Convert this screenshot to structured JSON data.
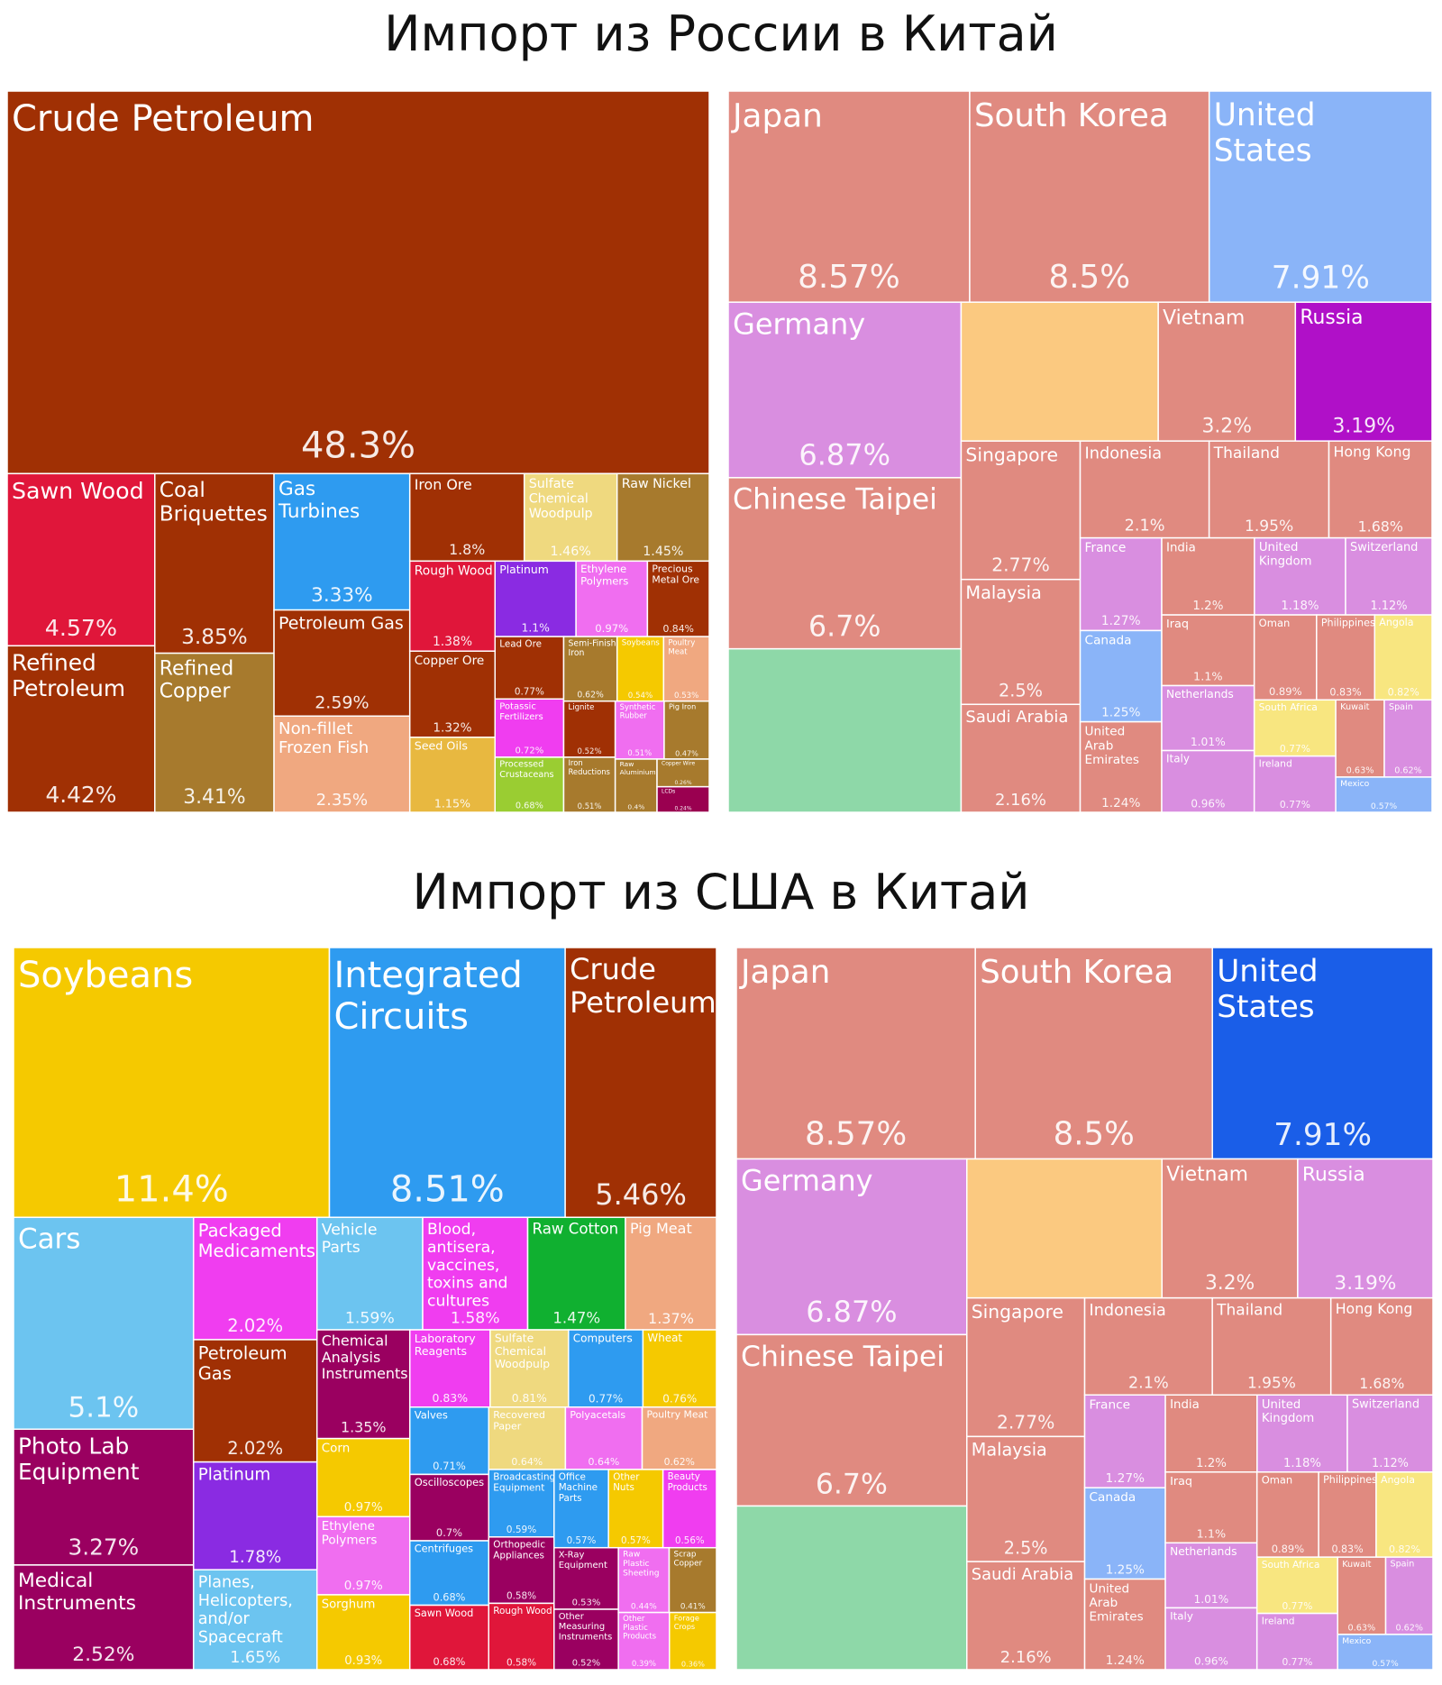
{
  "chart_data": [
    {
      "type": "treemap",
      "title": "Импорт из России в Китай",
      "categories": [
        "Crude Petroleum",
        "Sawn Wood",
        "Refined Petroleum",
        "Coal Briquettes",
        "Refined Copper",
        "Gas Turbines",
        "Petroleum Gas",
        "Non-fillet Frozen Fish",
        "Iron Ore",
        "Sulfate Chemical Woodpulp",
        "Raw Nickel",
        "Rough Wood",
        "Copper Ore",
        "Seed Oils",
        "Platinum",
        "Ethylene Polymers",
        "Precious Metal Ore",
        "Lead Ore",
        "Potassic Fertilizers",
        "Processed Crustaceans",
        "Semi-Finished Iron",
        "Soybeans",
        "Poultry Meat",
        "Lignite",
        "Iron Reductions",
        "Synthetic Rubber",
        "Pig Iron",
        "Raw Aluminium",
        "Copper Wire",
        "LCDs"
      ],
      "values": [
        48.3,
        4.57,
        4.42,
        3.85,
        3.41,
        3.33,
        2.59,
        2.35,
        1.8,
        1.46,
        1.45,
        1.38,
        1.32,
        1.15,
        1.1,
        0.97,
        0.84,
        0.77,
        0.72,
        0.68,
        0.62,
        0.54,
        0.53,
        0.52,
        0.51,
        0.51,
        0.47,
        0.4,
        0.26,
        0.24
      ],
      "value_labels": [
        "48.3%",
        "4.57%",
        "4.42%",
        "3.85%",
        "3.41%",
        "3.33%",
        "2.59%",
        "2.35%",
        "1.8%",
        "1.46%",
        "1.45%",
        "1.38%",
        "1.32%",
        "1.15%",
        "1.1%",
        "0.97%",
        "0.84%",
        "0.77%",
        "0.72%",
        "0.68%",
        "0.62%",
        "0.54%",
        "0.53%",
        "0.52%",
        "0.51%",
        "0.51%",
        "0.47%",
        "0.4%",
        "0.26%",
        "0.24%"
      ],
      "colors": [
        "#a03004",
        "#e0163a",
        "#a03004",
        "#a03004",
        "#a77a2d",
        "#2e9bf0",
        "#a03004",
        "#f0a880",
        "#a03004",
        "#efd97f",
        "#a77a2d",
        "#e0163a",
        "#a03004",
        "#e8b840",
        "#8a2be2",
        "#f06ef0",
        "#a03004",
        "#a03004",
        "#f03df0",
        "#9acd32",
        "#a77a2d",
        "#f5c900",
        "#f0a880",
        "#a03004",
        "#a77a2d",
        "#f06ef0",
        "#a77a2d",
        "#a77a2d",
        "#a77a2d",
        "#9a0050"
      ]
    },
    {
      "type": "treemap",
      "categories": [
        "Japan",
        "South Korea",
        "United States",
        "Germany",
        "Chinese Taipei",
        null,
        null,
        "Vietnam",
        "Russia",
        "Singapore",
        "Malaysia",
        "Saudi Arabia",
        "Indonesia",
        "Thailand",
        "Hong Kong",
        "France",
        "Canada",
        "United Arab Emirates",
        "India",
        "United Kingdom",
        "Switzerland",
        "Iraq",
        "Netherlands",
        "Italy",
        "Oman",
        "Philippines",
        "Angola",
        "South Africa",
        "Ireland",
        "Kuwait",
        "Spain",
        "Mexico"
      ],
      "values": [
        8.57,
        8.5,
        7.91,
        6.87,
        6.7,
        6.4,
        4.6,
        3.2,
        3.19,
        2.77,
        2.5,
        2.16,
        2.1,
        1.95,
        1.68,
        1.27,
        1.25,
        1.24,
        1.2,
        1.18,
        1.12,
        1.1,
        1.01,
        0.96,
        0.89,
        0.83,
        0.82,
        0.77,
        0.77,
        0.63,
        0.62,
        0.57
      ],
      "value_labels": [
        "8.57%",
        "8.5%",
        "7.91%",
        "6.87%",
        "6.7%",
        null,
        null,
        "3.2%",
        "3.19%",
        "2.77%",
        "2.5%",
        "2.16%",
        "2.1%",
        "1.95%",
        "1.68%",
        "1.27%",
        "1.25%",
        "1.24%",
        "1.2%",
        "1.18%",
        "1.12%",
        "1.1%",
        "1.01%",
        "0.96%",
        "0.89%",
        "0.83%",
        "0.82%",
        "0.77%",
        "0.77%",
        "0.63%",
        "0.62%",
        "0.57%"
      ],
      "colors": [
        "#e08a80",
        "#e08a80",
        "#8ab4f8",
        "#d98ee0",
        "#e08a80",
        "#8ed8a8",
        "#fbc980",
        "#e08a80",
        "#b010c8",
        "#e08a80",
        "#e08a80",
        "#e08a80",
        "#e08a80",
        "#e08a80",
        "#e08a80",
        "#d98ee0",
        "#8ab4f8",
        "#e08a80",
        "#e08a80",
        "#d98ee0",
        "#d98ee0",
        "#e08a80",
        "#d98ee0",
        "#d98ee0",
        "#e08a80",
        "#e08a80",
        "#f8e680",
        "#f8e680",
        "#d98ee0",
        "#e08a80",
        "#d98ee0",
        "#8ab4f8"
      ]
    },
    {
      "type": "treemap",
      "title": "Импорт из США в Китай",
      "categories": [
        "Soybeans",
        "Integrated Circuits",
        "Crude Petroleum",
        "Cars",
        "Photo Lab Equipment",
        "Medical Instruments",
        "Packaged Medicaments",
        "Petroleum Gas",
        "Platinum",
        "Planes, Helicopters, and/or Spacecraft",
        "Vehicle Parts",
        "Blood, antisera, vaccines, toxins and cultures",
        "Raw Cotton",
        "Pig Meat",
        "Chemical Analysis Instruments",
        "Corn",
        "Ethylene Polymers",
        "Sorghum",
        "Laboratory Reagents",
        "Sulfate Chemical Woodpulp",
        "Computers",
        "Wheat",
        "Valves",
        "Oscilloscopes",
        "Centrifuges",
        "Sawn Wood",
        "Recovered Paper",
        "Polyacetals",
        "Poultry Meat",
        "Broadcasting Equipment",
        "Orthopedic Appliances",
        "Rough Wood",
        "Office Machine Parts",
        "Other Nuts",
        "Beauty Products",
        "X-Ray Equipment",
        "Other Measuring Instruments",
        "Raw Plastic Sheeting",
        "Scrap Copper",
        "Other Plastic Products",
        "Forage Crops"
      ],
      "values": [
        11.4,
        8.51,
        5.46,
        5.1,
        3.27,
        2.52,
        2.02,
        2.02,
        1.78,
        1.65,
        1.59,
        1.58,
        1.47,
        1.37,
        1.35,
        0.97,
        0.97,
        0.93,
        0.83,
        0.81,
        0.77,
        0.76,
        0.71,
        0.7,
        0.68,
        0.68,
        0.64,
        0.64,
        0.62,
        0.59,
        0.58,
        0.58,
        0.57,
        0.57,
        0.56,
        0.53,
        0.52,
        0.44,
        0.41,
        0.39,
        0.36
      ],
      "value_labels": [
        "11.4%",
        "8.51%",
        "5.46%",
        "5.1%",
        "3.27%",
        "2.52%",
        "2.02%",
        "2.02%",
        "1.78%",
        "1.65%",
        "1.59%",
        "1.58%",
        "1.47%",
        "1.37%",
        "1.35%",
        "0.97%",
        "0.97%",
        "0.93%",
        "0.83%",
        "0.81%",
        "0.77%",
        "0.76%",
        "0.71%",
        "0.7%",
        "0.68%",
        "0.68%",
        "0.64%",
        "0.64%",
        "0.62%",
        "0.59%",
        "0.58%",
        "0.58%",
        "0.57%",
        "0.57%",
        "0.56%",
        "0.53%",
        "0.52%",
        "0.44%",
        "0.41%",
        "0.39%",
        "0.36%"
      ],
      "colors": [
        "#f5c900",
        "#2e9bf0",
        "#a03004",
        "#6cc4f0",
        "#9a0060",
        "#9a0060",
        "#f03df0",
        "#a03004",
        "#8a2be2",
        "#6cc4f0",
        "#6cc4f0",
        "#f03df0",
        "#10b030",
        "#f0a880",
        "#9a0060",
        "#f5c900",
        "#f06ef0",
        "#f5c900",
        "#f03df0",
        "#efd97f",
        "#2e9bf0",
        "#f5c900",
        "#2e9bf0",
        "#9a0060",
        "#2e9bf0",
        "#e0163a",
        "#efd97f",
        "#f06ef0",
        "#f0a880",
        "#2e9bf0",
        "#9a0060",
        "#e0163a",
        "#2e9bf0",
        "#f5c900",
        "#f03df0",
        "#9a0060",
        "#9a0060",
        "#f06ef0",
        "#a77a2d",
        "#f06ef0",
        "#f5c900"
      ]
    },
    {
      "type": "treemap",
      "categories": [
        "Japan",
        "South Korea",
        "United States",
        "Germany",
        "Chinese Taipei",
        null,
        null,
        "Vietnam",
        "Russia",
        "Singapore",
        "Malaysia",
        "Saudi Arabia",
        "Indonesia",
        "Thailand",
        "Hong Kong",
        "France",
        "Canada",
        "United Arab Emirates",
        "India",
        "United Kingdom",
        "Switzerland",
        "Iraq",
        "Netherlands",
        "Italy",
        "Oman",
        "Philippines",
        "Angola",
        "South Africa",
        "Ireland",
        "Kuwait",
        "Spain",
        "Mexico"
      ],
      "values": [
        8.57,
        8.5,
        7.91,
        6.87,
        6.7,
        6.4,
        4.6,
        3.2,
        3.19,
        2.77,
        2.5,
        2.16,
        2.1,
        1.95,
        1.68,
        1.27,
        1.25,
        1.24,
        1.2,
        1.18,
        1.12,
        1.1,
        1.01,
        0.96,
        0.89,
        0.83,
        0.82,
        0.77,
        0.77,
        0.63,
        0.62,
        0.57
      ],
      "value_labels": [
        "8.57%",
        "8.5%",
        "7.91%",
        "6.87%",
        "6.7%",
        null,
        null,
        "3.2%",
        "3.19%",
        "2.77%",
        "2.5%",
        "2.16%",
        "2.1%",
        "1.95%",
        "1.68%",
        "1.27%",
        "1.25%",
        "1.24%",
        "1.2%",
        "1.18%",
        "1.12%",
        "1.1%",
        "1.01%",
        "0.96%",
        "0.89%",
        "0.83%",
        "0.82%",
        "0.77%",
        "0.77%",
        "0.63%",
        "0.62%",
        "0.57%"
      ],
      "colors": [
        "#e08a80",
        "#e08a80",
        "#1a5ee8",
        "#d98ee0",
        "#e08a80",
        "#8ed8a8",
        "#fbc980",
        "#e08a80",
        "#d98ee0",
        "#e08a80",
        "#e08a80",
        "#e08a80",
        "#e08a80",
        "#e08a80",
        "#e08a80",
        "#d98ee0",
        "#8ab4f8",
        "#e08a80",
        "#e08a80",
        "#d98ee0",
        "#d98ee0",
        "#e08a80",
        "#d98ee0",
        "#d98ee0",
        "#e08a80",
        "#e08a80",
        "#f8e680",
        "#f8e680",
        "#d98ee0",
        "#e08a80",
        "#d98ee0",
        "#8ab4f8"
      ]
    }
  ]
}
